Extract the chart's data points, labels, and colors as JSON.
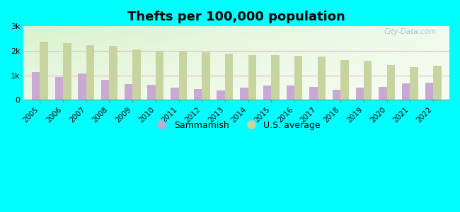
{
  "title": "Thefts per 100,000 population",
  "years": [
    2005,
    2006,
    2007,
    2008,
    2009,
    2010,
    2011,
    2012,
    2013,
    2014,
    2015,
    2016,
    2017,
    2018,
    2019,
    2020,
    2021,
    2022
  ],
  "sammamish": [
    1130,
    930,
    1070,
    810,
    630,
    600,
    490,
    430,
    370,
    490,
    590,
    590,
    510,
    420,
    490,
    520,
    680,
    700
  ],
  "us_average": [
    2380,
    2310,
    2240,
    2200,
    2070,
    2000,
    1970,
    1940,
    1880,
    1820,
    1820,
    1790,
    1760,
    1630,
    1590,
    1430,
    1320,
    1390
  ],
  "sammamish_color": "#c9a8d4",
  "us_average_color": "#c8d4a0",
  "background_color": "#00ffff",
  "ylim": [
    0,
    3000
  ],
  "yticks": [
    0,
    1000,
    2000,
    3000
  ],
  "ytick_labels": [
    "0",
    "1k",
    "2k",
    "3k"
  ],
  "bar_width": 0.35,
  "legend_sammamish": "Sammamish",
  "legend_us": "U.S. average",
  "title_fontsize": 13,
  "watermark": "City-Data.com"
}
